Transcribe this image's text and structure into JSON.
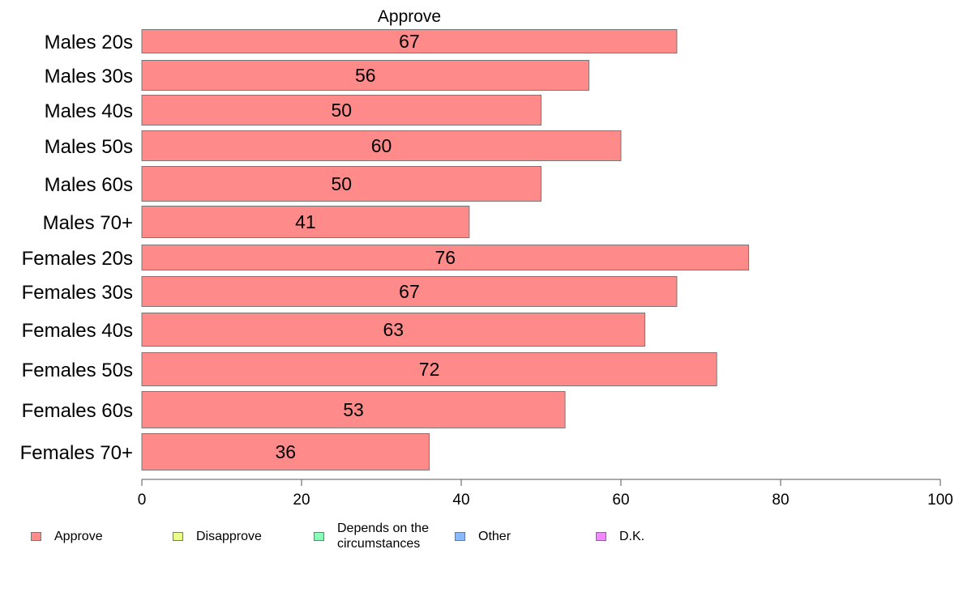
{
  "chart_data": {
    "type": "bar",
    "orientation": "horizontal",
    "title": "Approve",
    "categories": [
      "Males 20s",
      "Males 30s",
      "Males 40s",
      "Males 50s",
      "Males 60s",
      "Males 70+",
      "Females 20s",
      "Females 30s",
      "Females 40s",
      "Females 50s",
      "Females 60s",
      "Females 70+"
    ],
    "series": [
      {
        "name": "Approve",
        "values": [
          67,
          56,
          50,
          60,
          50,
          41,
          76,
          67,
          63,
          72,
          53,
          36
        ],
        "color": "#ff8a8a"
      }
    ],
    "xlim": [
      0,
      100
    ],
    "xticks": [
      0,
      20,
      40,
      60,
      80,
      100
    ],
    "data_labels": true,
    "legend_position": "bottom",
    "legend": [
      {
        "label": "Approve",
        "color": "#ff8a8a"
      },
      {
        "label": "Disapprove",
        "color": "#eaff8a"
      },
      {
        "label": "Depends on the\ncircumstances",
        "color": "#8affb9"
      },
      {
        "label": "Other",
        "color": "#8ab9ff"
      },
      {
        "label": "D.K.",
        "color": "#ef8aff"
      }
    ]
  }
}
